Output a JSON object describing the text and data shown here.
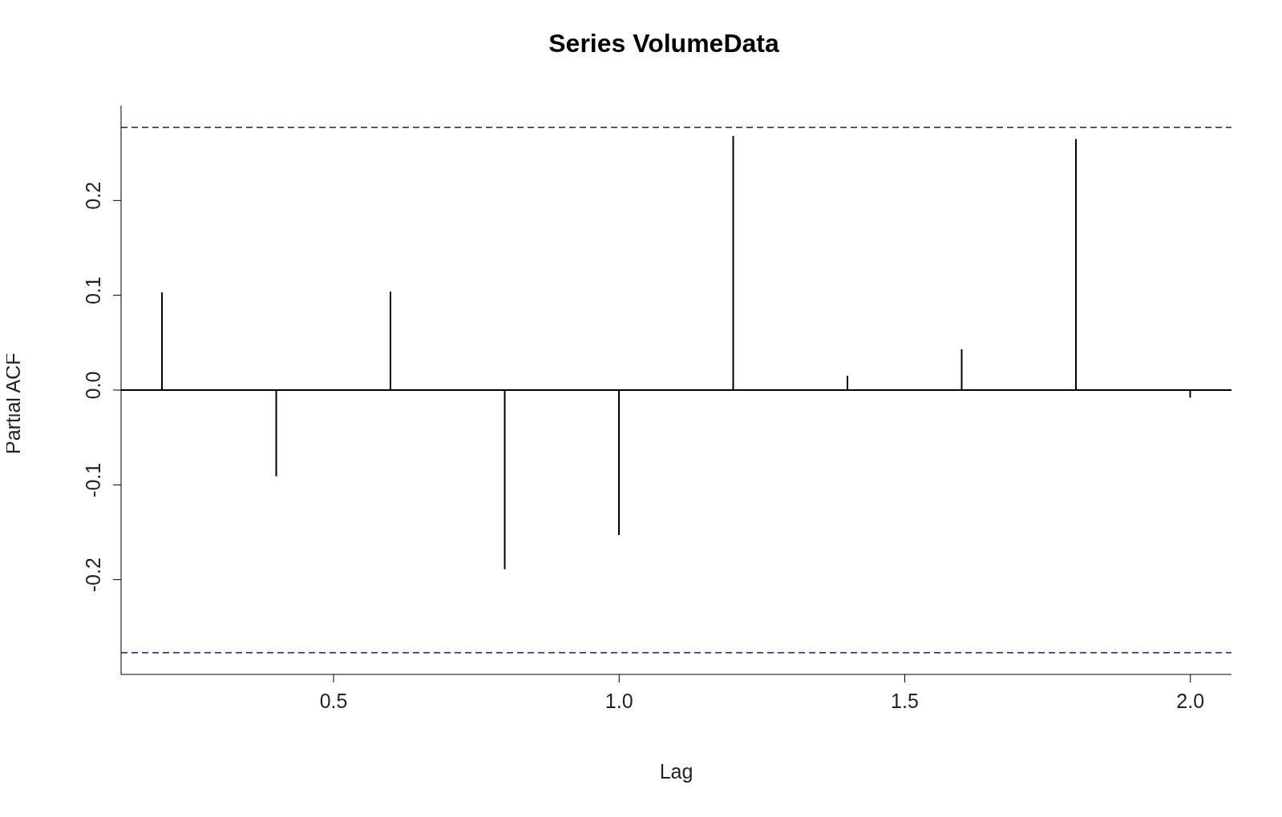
{
  "chart_data": {
    "type": "bar",
    "title": "Series  VolumeData",
    "xlabel": "Lag",
    "ylabel": "Partial ACF",
    "x": [
      0.2,
      0.4,
      0.6,
      0.8,
      1.0,
      1.2,
      1.4,
      1.6,
      1.8,
      2.0
    ],
    "values": [
      0.103,
      -0.091,
      0.104,
      -0.189,
      -0.153,
      0.268,
      0.015,
      0.043,
      0.265,
      -0.008
    ],
    "color": "#000000",
    "xlim": [
      0.128,
      2.072
    ],
    "xticks": [
      0.5,
      {
        "value": 1.0,
        "label": "1.0"
      },
      1.5,
      {
        "value": 2.0,
        "label": "2.0"
      }
    ],
    "ylim": [
      -0.3,
      0.3
    ],
    "yticks": [
      -0.2,
      -0.1,
      {
        "value": 0,
        "label": "0.0"
      },
      0.1,
      0.2
    ],
    "ref_lines": [
      {
        "axis": "y",
        "value": 0.277,
        "color": "#3c3c96",
        "line_style": "dashed"
      },
      {
        "axis": "y",
        "value": -0.277,
        "color": "#3c3c96",
        "line_style": "dashed"
      },
      {
        "axis": "y",
        "value": 0,
        "color": "#000000",
        "line_style": "solid"
      }
    ],
    "grid": false,
    "legend": false
  }
}
